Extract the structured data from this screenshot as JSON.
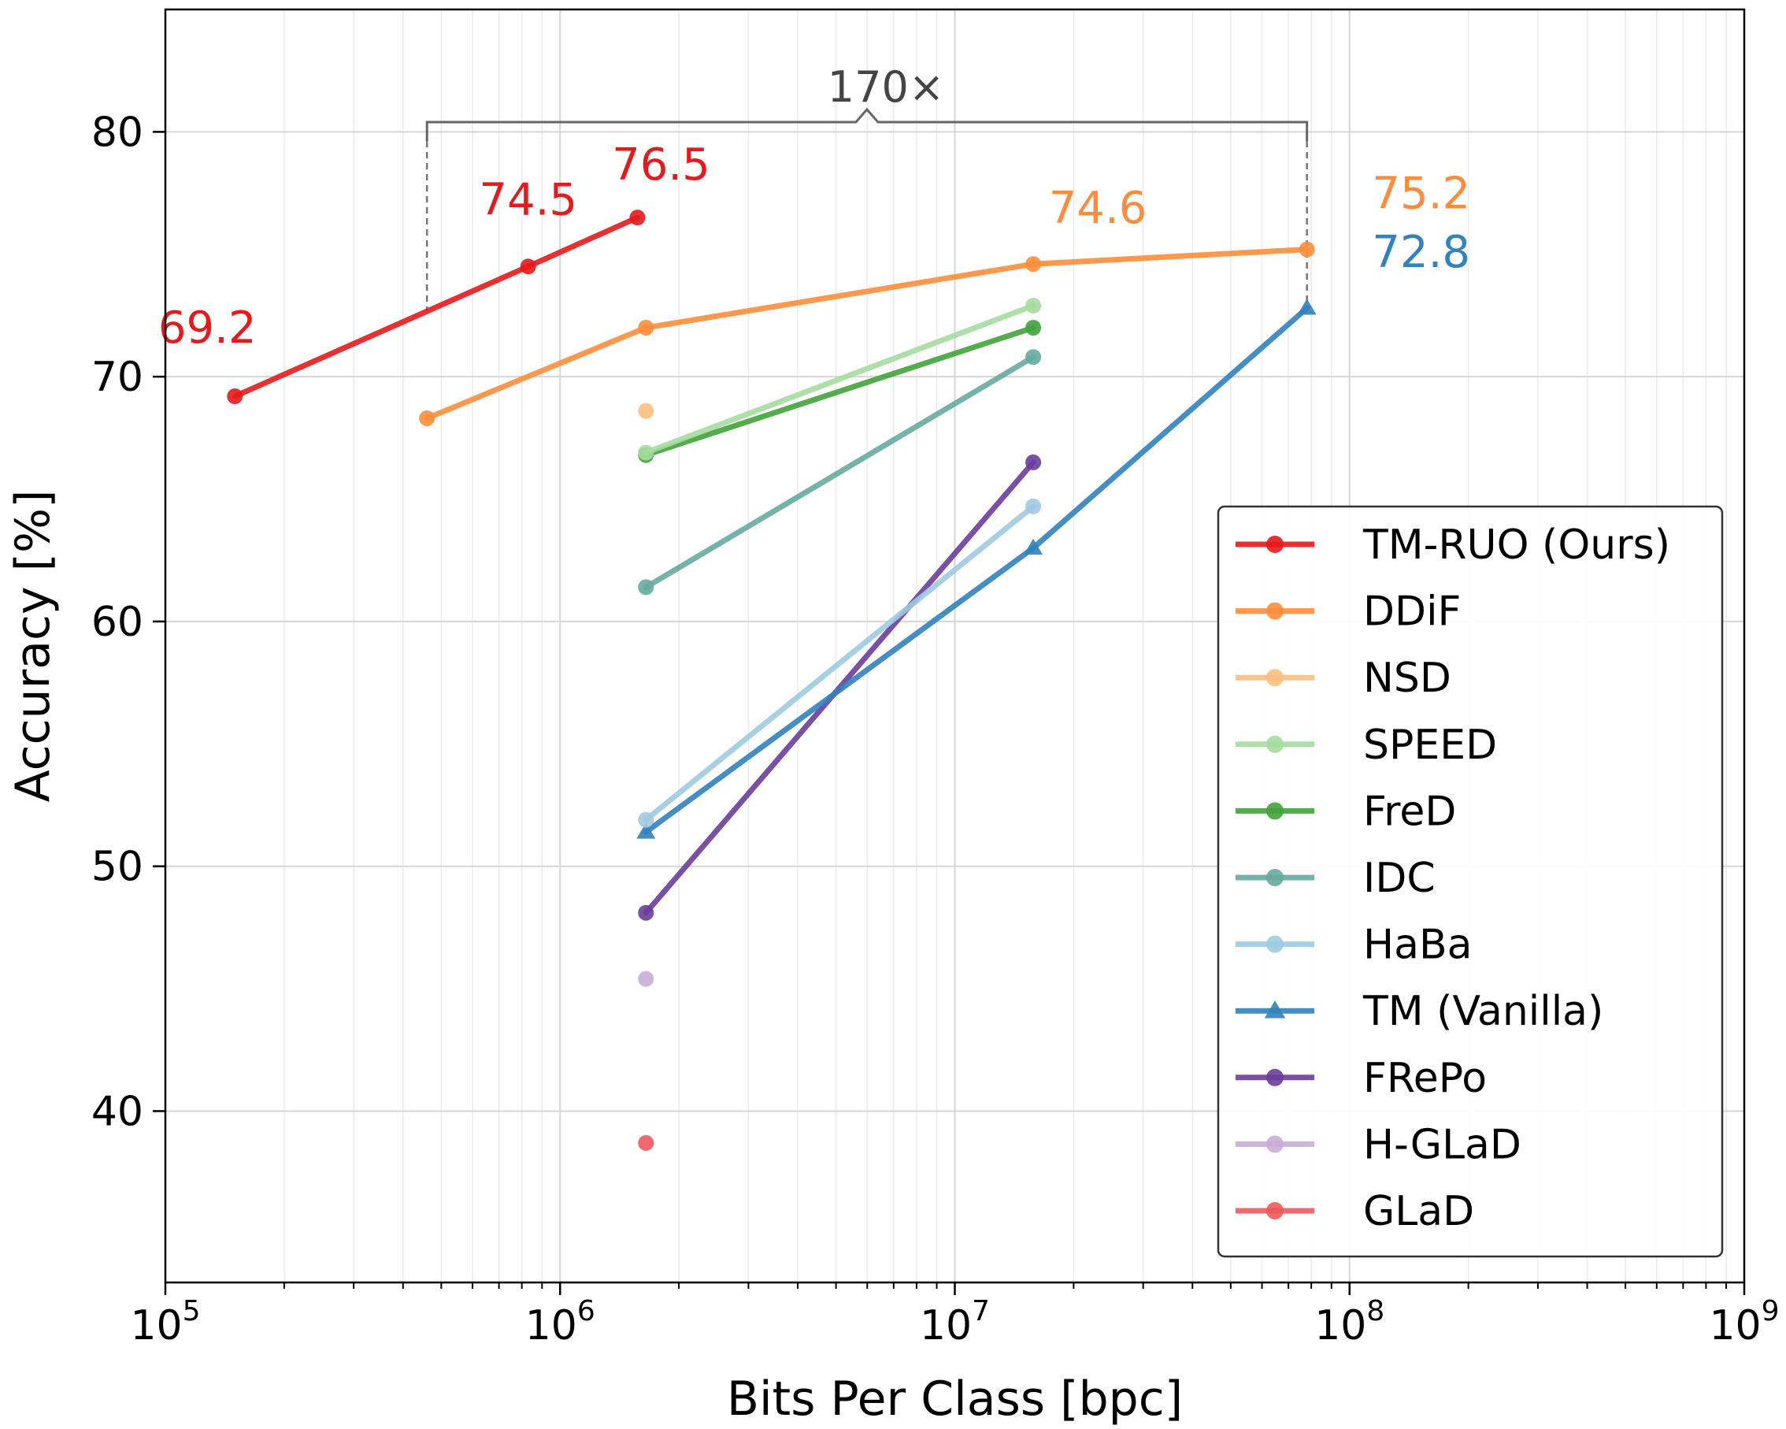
{
  "chart_data": {
    "type": "line",
    "xscale": "log",
    "xlabel": "Bits Per Class [bpc]",
    "ylabel": "Accuracy [%]",
    "xlim": [
      100000,
      1000000000
    ],
    "ylim": [
      33,
      85
    ],
    "grid": true,
    "legend_position": "lower-right",
    "x_ticks": [
      {
        "value": 100000,
        "base": "10",
        "exp": "5"
      },
      {
        "value": 1000000,
        "base": "10",
        "exp": "6"
      },
      {
        "value": 10000000,
        "base": "10",
        "exp": "7"
      },
      {
        "value": 100000000,
        "base": "10",
        "exp": "8"
      },
      {
        "value": 1000000000,
        "base": "10",
        "exp": "9"
      }
    ],
    "y_ticks": [
      {
        "value": 40,
        "label": "40"
      },
      {
        "value": 50,
        "label": "50"
      },
      {
        "value": 60,
        "label": "60"
      },
      {
        "value": 70,
        "label": "70"
      },
      {
        "value": 80,
        "label": "80"
      }
    ],
    "series": [
      {
        "name": "TM-RUO (Ours)",
        "color": "#e41a1c",
        "marker": "circle",
        "opacity": 0.9,
        "x": [
          150000,
          830000,
          1570000
        ],
        "y": [
          69.2,
          74.5,
          76.5
        ]
      },
      {
        "name": "DDiF",
        "color": "#fd8d3c",
        "marker": "circle",
        "opacity": 0.9,
        "x": [
          460000,
          1650000,
          15800000,
          78000000
        ],
        "y": [
          68.3,
          72.0,
          74.6,
          75.2
        ]
      },
      {
        "name": "NSD",
        "color": "#fdbf80",
        "marker": "circle",
        "opacity": 0.9,
        "x": [
          1650000
        ],
        "y": [
          68.6
        ]
      },
      {
        "name": "SPEED",
        "color": "#a6dba0",
        "marker": "circle",
        "opacity": 0.9,
        "x": [
          1650000,
          15800000
        ],
        "y": [
          66.9,
          72.9
        ]
      },
      {
        "name": "FreD",
        "color": "#41a33c",
        "marker": "circle",
        "opacity": 0.9,
        "x": [
          1650000,
          15800000
        ],
        "y": [
          66.8,
          72.0
        ]
      },
      {
        "name": "IDC",
        "color": "#66aaa0",
        "marker": "circle",
        "opacity": 0.9,
        "x": [
          1650000,
          15800000
        ],
        "y": [
          61.4,
          70.8
        ]
      },
      {
        "name": "HaBa",
        "color": "#9ecae1",
        "marker": "circle",
        "opacity": 0.9,
        "x": [
          1650000,
          15800000
        ],
        "y": [
          51.9,
          64.7
        ]
      },
      {
        "name": "TM (Vanilla)",
        "color": "#3182bd",
        "marker": "triangle",
        "opacity": 0.9,
        "x": [
          1650000,
          15800000,
          78000000
        ],
        "y": [
          51.4,
          63.0,
          72.8
        ]
      },
      {
        "name": "FRePo",
        "color": "#6a3d9a",
        "marker": "circle",
        "opacity": 0.9,
        "x": [
          1650000,
          15800000
        ],
        "y": [
          48.1,
          66.5
        ]
      },
      {
        "name": "H-GLaD",
        "color": "#c7aed6",
        "marker": "circle",
        "opacity": 0.9,
        "x": [
          1650000
        ],
        "y": [
          45.4
        ]
      },
      {
        "name": "GLaD",
        "color": "#ec5a5c",
        "marker": "circle",
        "opacity": 0.9,
        "x": [
          1650000
        ],
        "y": [
          38.7
        ]
      }
    ],
    "annotations": [
      {
        "text": "69.2",
        "x": 150000,
        "y": 69.2,
        "color": "#e41a1c"
      },
      {
        "text": "74.5",
        "x": 830000,
        "y": 74.5,
        "color": "#e41a1c"
      },
      {
        "text": "76.5",
        "x": 1570000,
        "y": 76.5,
        "color": "#e41a1c"
      },
      {
        "text": "74.6",
        "x": 15800000,
        "y": 74.6,
        "color": "#fd8d3c"
      },
      {
        "text": "75.2",
        "x": 78000000,
        "y": 75.2,
        "color": "#fd8d3c"
      },
      {
        "text": "72.8",
        "x": 78000000,
        "y": 72.8,
        "color": "#3182bd"
      }
    ],
    "bracket": {
      "text": "170×",
      "x_left": 460000,
      "x_right": 78000000,
      "y": 80.4
    }
  }
}
